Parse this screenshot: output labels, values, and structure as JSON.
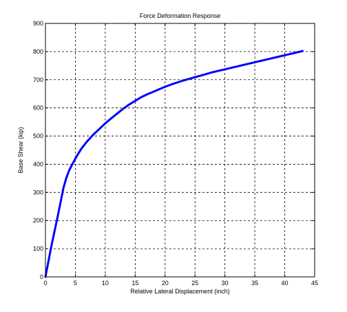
{
  "chart_data": {
    "type": "line",
    "title": "Force Deformation Response",
    "xlabel": "Relative Lateral Displacement (inch)",
    "ylabel": "Base Shear (kip)",
    "xlim": [
      0,
      45
    ],
    "ylim": [
      0,
      900
    ],
    "xticks": [
      0,
      5,
      10,
      15,
      20,
      25,
      30,
      35,
      40,
      45
    ],
    "yticks": [
      0,
      100,
      200,
      300,
      400,
      500,
      600,
      700,
      800,
      900
    ],
    "grid": "dashed",
    "legend": "none",
    "series": [
      {
        "color": "#0000ff",
        "x": [
          0,
          0.5,
          1,
          1.5,
          2,
          2.5,
          3,
          3.5,
          4,
          4.5,
          5,
          5.5,
          6,
          7,
          8,
          9,
          10,
          11,
          12,
          13,
          14,
          15,
          16,
          17,
          18,
          19,
          20,
          21,
          22,
          23,
          24,
          25,
          26,
          27,
          28,
          29,
          30,
          31,
          32,
          33,
          34,
          35,
          36,
          37,
          38,
          39,
          40,
          41,
          42,
          43
        ],
        "y": [
          0,
          55,
          110,
          160,
          210,
          262,
          315,
          352,
          380,
          400,
          420,
          438,
          455,
          482,
          505,
          525,
          545,
          563,
          580,
          597,
          612,
          625,
          638,
          648,
          657,
          666,
          675,
          683,
          690,
          697,
          703,
          709,
          715,
          721,
          727,
          732,
          737,
          742,
          747,
          752,
          757,
          762,
          767,
          772,
          777,
          782,
          787,
          792,
          797,
          802
        ]
      }
    ]
  }
}
